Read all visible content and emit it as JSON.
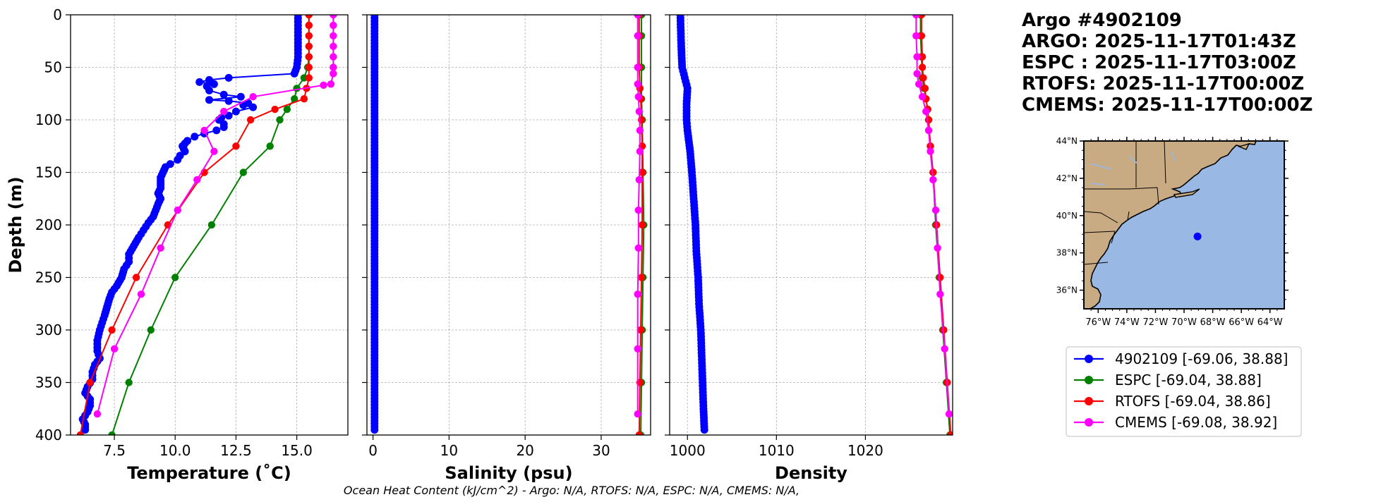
{
  "title": {
    "line1": "Argo #4902109",
    "line2": "ARGO: 2025-11-17T01:43Z",
    "line3": "ESPC : 2025-11-17T03:00Z",
    "line4": "RTOFS: 2025-11-17T00:00Z",
    "line5": "CMEMS: 2025-11-17T00:00Z"
  },
  "footer": "Ocean Heat Content (kJ/cm^2) - Argo: N/A,  RTOFS: N/A,  ESPC: N/A,  CMEMS: N/A,",
  "colors": {
    "argo": "#0000ff",
    "espc": "#008000",
    "rtofs": "#ff0000",
    "cmems": "#ff00ff",
    "land": "#c8ab82",
    "ocean": "#99b8e3"
  },
  "legend": [
    {
      "label": "4902109 [-69.06, 38.88]",
      "color": "#0000ff"
    },
    {
      "label": "ESPC [-69.04, 38.88]",
      "color": "#008000"
    },
    {
      "label": "RTOFS [-69.04, 38.86]",
      "color": "#ff0000"
    },
    {
      "label": "CMEMS [-69.08, 38.92]",
      "color": "#ff00ff"
    }
  ],
  "map": {
    "lat_labels": [
      "44°N",
      "42°N",
      "40°N",
      "38°N",
      "36°N"
    ],
    "lat_values": [
      44,
      42,
      40,
      38,
      36
    ],
    "lon_labels": [
      "76°W",
      "74°W",
      "72°W",
      "70°W",
      "68°W",
      "66°W",
      "64°W"
    ],
    "lon_values": [
      -76,
      -74,
      -72,
      -70,
      -68,
      -66,
      -64
    ],
    "lon_range": [
      -77,
      -63
    ],
    "lat_range": [
      35,
      44
    ],
    "float_position": {
      "lon": -69.06,
      "lat": 38.88
    }
  },
  "chart_data": [
    {
      "type": "line",
      "xlabel": "Temperature (˚C)",
      "ylabel": "Depth (m)",
      "xlim": [
        5.7,
        17.1
      ],
      "ylim": [
        400,
        0
      ],
      "xticks": [
        7.5,
        10.0,
        12.5,
        15.0
      ],
      "xtick_labels": [
        "7.5",
        "10.0",
        "12.5",
        "15.0"
      ],
      "yticks": [
        0,
        50,
        100,
        150,
        200,
        250,
        300,
        350,
        400
      ],
      "ytick_labels": [
        "0",
        "50",
        "100",
        "150",
        "200",
        "250",
        "300",
        "350",
        "400"
      ],
      "grid": true,
      "series": [
        {
          "name": "4902109",
          "dense": true,
          "points": [
            [
              15.05,
              0
            ],
            [
              15.05,
              10
            ],
            [
              15.05,
              20
            ],
            [
              15.05,
              30
            ],
            [
              15.05,
              40
            ],
            [
              15.0,
              50
            ],
            [
              14.9,
              56
            ],
            [
              12.2,
              60
            ],
            [
              11.4,
              62
            ],
            [
              11.0,
              64
            ],
            [
              11.6,
              66
            ],
            [
              11.3,
              68
            ],
            [
              11.4,
              72
            ],
            [
              12.0,
              76
            ],
            [
              12.7,
              78
            ],
            [
              11.4,
              81
            ],
            [
              12.2,
              82
            ],
            [
              13.0,
              84
            ],
            [
              12.8,
              86
            ],
            [
              13.2,
              88
            ],
            [
              12.5,
              92
            ],
            [
              12.2,
              96
            ],
            [
              11.9,
              98
            ],
            [
              11.8,
              100
            ],
            [
              12.0,
              104
            ],
            [
              12.0,
              107
            ],
            [
              11.7,
              110
            ],
            [
              11.2,
              113
            ],
            [
              10.8,
              116
            ],
            [
              10.5,
              120
            ],
            [
              10.3,
              125
            ],
            [
              10.4,
              130
            ],
            [
              10.2,
              134
            ],
            [
              10.1,
              138
            ],
            [
              9.8,
              142
            ],
            [
              9.6,
              145
            ],
            [
              9.5,
              150
            ],
            [
              9.4,
              155
            ],
            [
              9.4,
              160
            ],
            [
              9.4,
              165
            ],
            [
              9.3,
              170
            ],
            [
              9.4,
              175
            ],
            [
              9.3,
              180
            ],
            [
              9.2,
              186
            ],
            [
              9.1,
              192
            ],
            [
              8.9,
              198
            ],
            [
              8.7,
              205
            ],
            [
              8.5,
              212
            ],
            [
              8.3,
              220
            ],
            [
              8.1,
              228
            ],
            [
              8.1,
              235
            ],
            [
              7.9,
              242
            ],
            [
              7.8,
              250
            ],
            [
              7.6,
              258
            ],
            [
              7.4,
              264
            ],
            [
              7.3,
              270
            ],
            [
              7.2,
              278
            ],
            [
              7.1,
              286
            ],
            [
              7.0,
              293
            ],
            [
              6.9,
              300
            ],
            [
              6.8,
              310
            ],
            [
              6.8,
              320
            ],
            [
              6.9,
              327
            ],
            [
              6.7,
              333
            ],
            [
              6.6,
              340
            ],
            [
              6.6,
              347
            ],
            [
              6.4,
              354
            ],
            [
              6.3,
              360
            ],
            [
              6.5,
              366
            ],
            [
              6.5,
              372
            ],
            [
              6.4,
              378
            ],
            [
              6.2,
              385
            ],
            [
              6.3,
              390
            ],
            [
              6.3,
              395
            ]
          ]
        },
        {
          "name": "ESPC",
          "points": [
            [
              15.5,
              0
            ],
            [
              15.5,
              10
            ],
            [
              15.5,
              20
            ],
            [
              15.5,
              30
            ],
            [
              15.5,
              40
            ],
            [
              15.45,
              50
            ],
            [
              15.3,
              60
            ],
            [
              15.0,
              70
            ],
            [
              14.9,
              80
            ],
            [
              14.6,
              90
            ],
            [
              14.3,
              100
            ],
            [
              13.9,
              125
            ],
            [
              12.8,
              150
            ],
            [
              11.5,
              200
            ],
            [
              10.0,
              250
            ],
            [
              9.0,
              300
            ],
            [
              8.1,
              350
            ],
            [
              7.4,
              400
            ]
          ]
        },
        {
          "name": "RTOFS",
          "points": [
            [
              15.5,
              0
            ],
            [
              15.5,
              10
            ],
            [
              15.5,
              20
            ],
            [
              15.5,
              30
            ],
            [
              15.5,
              40
            ],
            [
              15.5,
              50
            ],
            [
              15.5,
              60
            ],
            [
              15.4,
              70
            ],
            [
              15.3,
              80
            ],
            [
              14.1,
              90
            ],
            [
              13.1,
              100
            ],
            [
              12.5,
              125
            ],
            [
              11.2,
              150
            ],
            [
              9.7,
              200
            ],
            [
              8.4,
              250
            ],
            [
              7.4,
              300
            ],
            [
              6.5,
              350
            ],
            [
              6.1,
              400
            ]
          ]
        },
        {
          "name": "CMEMS",
          "points": [
            [
              16.5,
              0
            ],
            [
              16.5,
              10
            ],
            [
              16.5,
              20
            ],
            [
              16.5,
              30
            ],
            [
              16.5,
              40
            ],
            [
              16.5,
              50
            ],
            [
              16.5,
              56
            ],
            [
              16.4,
              66
            ],
            [
              16.1,
              67
            ],
            [
              13.2,
              78
            ],
            [
              12.0,
              92
            ],
            [
              11.2,
              110
            ],
            [
              11.6,
              130
            ],
            [
              10.9,
              157
            ],
            [
              10.1,
              186
            ],
            [
              9.4,
              222
            ],
            [
              8.6,
              266
            ],
            [
              7.5,
              318
            ],
            [
              6.8,
              380
            ]
          ]
        }
      ]
    },
    {
      "type": "line",
      "xlabel": "Salinity (psu)",
      "xlim": [
        -0.8,
        36.5
      ],
      "ylim": [
        400,
        0
      ],
      "xticks": [
        0,
        10,
        20,
        30
      ],
      "xtick_labels": [
        "0",
        "10",
        "20",
        "30"
      ],
      "grid": true,
      "series": [
        {
          "name": "4902109",
          "dense": true,
          "points": [
            [
              0.2,
              0
            ],
            [
              0.2,
              100
            ],
            [
              0.2,
              200
            ],
            [
              0.2,
              300
            ],
            [
              0.2,
              395
            ]
          ]
        },
        {
          "name": "ESPC",
          "points": [
            [
              35.3,
              0
            ],
            [
              35.3,
              20
            ],
            [
              35.3,
              50
            ],
            [
              35.3,
              80
            ],
            [
              35.4,
              100
            ],
            [
              35.5,
              150
            ],
            [
              35.6,
              200
            ],
            [
              35.5,
              250
            ],
            [
              35.4,
              300
            ],
            [
              35.3,
              350
            ],
            [
              35.2,
              400
            ]
          ]
        },
        {
          "name": "RTOFS",
          "points": [
            [
              35.0,
              0
            ],
            [
              35.0,
              20
            ],
            [
              35.0,
              50
            ],
            [
              35.1,
              70
            ],
            [
              35.2,
              80
            ],
            [
              35.3,
              100
            ],
            [
              35.4,
              125
            ],
            [
              35.4,
              150
            ],
            [
              35.4,
              200
            ],
            [
              35.3,
              250
            ],
            [
              35.2,
              300
            ],
            [
              35.1,
              350
            ],
            [
              35.0,
              400
            ]
          ]
        },
        {
          "name": "CMEMS",
          "points": [
            [
              34.8,
              0
            ],
            [
              34.8,
              20
            ],
            [
              34.8,
              50
            ],
            [
              34.8,
              66
            ],
            [
              34.9,
              78
            ],
            [
              35.0,
              92
            ],
            [
              35.1,
              110
            ],
            [
              35.1,
              130
            ],
            [
              35.0,
              157
            ],
            [
              34.9,
              186
            ],
            [
              34.9,
              222
            ],
            [
              34.8,
              266
            ],
            [
              34.8,
              318
            ],
            [
              34.8,
              380
            ]
          ]
        }
      ]
    },
    {
      "type": "line",
      "xlabel": "Density",
      "xlim": [
        998,
        1029.8
      ],
      "ylim": [
        400,
        0
      ],
      "xticks": [
        1000,
        1010,
        1020
      ],
      "xtick_labels": [
        "1000",
        "1010",
        "1020"
      ],
      "grid": true,
      "series": [
        {
          "name": "4902109",
          "dense": true,
          "points": [
            [
              999.2,
              0
            ],
            [
              999.3,
              30
            ],
            [
              999.4,
              50
            ],
            [
              999.7,
              60
            ],
            [
              1000.0,
              70
            ],
            [
              999.9,
              85
            ],
            [
              999.9,
              100
            ],
            [
              1000.0,
              110
            ],
            [
              1000.3,
              130
            ],
            [
              1000.5,
              150
            ],
            [
              1000.7,
              175
            ],
            [
              1000.9,
              200
            ],
            [
              1001.0,
              225
            ],
            [
              1001.2,
              250
            ],
            [
              1001.3,
              275
            ],
            [
              1001.5,
              300
            ],
            [
              1001.6,
              325
            ],
            [
              1001.7,
              350
            ],
            [
              1001.8,
              375
            ],
            [
              1001.9,
              395
            ]
          ]
        },
        {
          "name": "ESPC",
          "points": [
            [
              1026.2,
              0
            ],
            [
              1026.2,
              20
            ],
            [
              1026.3,
              40
            ],
            [
              1026.4,
              60
            ],
            [
              1026.6,
              70
            ],
            [
              1026.8,
              80
            ],
            [
              1027.0,
              90
            ],
            [
              1027.1,
              100
            ],
            [
              1027.3,
              125
            ],
            [
              1027.6,
              150
            ],
            [
              1027.9,
              200
            ],
            [
              1028.3,
              250
            ],
            [
              1028.7,
              300
            ],
            [
              1029.1,
              350
            ],
            [
              1029.5,
              400
            ]
          ]
        },
        {
          "name": "RTOFS",
          "points": [
            [
              1026.3,
              0
            ],
            [
              1026.3,
              20
            ],
            [
              1026.4,
              40
            ],
            [
              1026.4,
              50
            ],
            [
              1026.5,
              60
            ],
            [
              1026.7,
              70
            ],
            [
              1026.8,
              80
            ],
            [
              1027.0,
              90
            ],
            [
              1027.1,
              100
            ],
            [
              1027.3,
              125
            ],
            [
              1027.6,
              150
            ],
            [
              1028.0,
              200
            ],
            [
              1028.4,
              250
            ],
            [
              1028.8,
              300
            ],
            [
              1029.2,
              350
            ],
            [
              1029.6,
              400
            ]
          ]
        },
        {
          "name": "CMEMS",
          "points": [
            [
              1025.7,
              0
            ],
            [
              1025.7,
              20
            ],
            [
              1025.8,
              40
            ],
            [
              1025.8,
              56
            ],
            [
              1026.0,
              66
            ],
            [
              1026.4,
              78
            ],
            [
              1026.8,
              92
            ],
            [
              1027.1,
              110
            ],
            [
              1027.3,
              130
            ],
            [
              1027.6,
              157
            ],
            [
              1027.9,
              186
            ],
            [
              1028.1,
              222
            ],
            [
              1028.4,
              266
            ],
            [
              1028.9,
              318
            ],
            [
              1029.4,
              380
            ]
          ]
        }
      ]
    }
  ]
}
